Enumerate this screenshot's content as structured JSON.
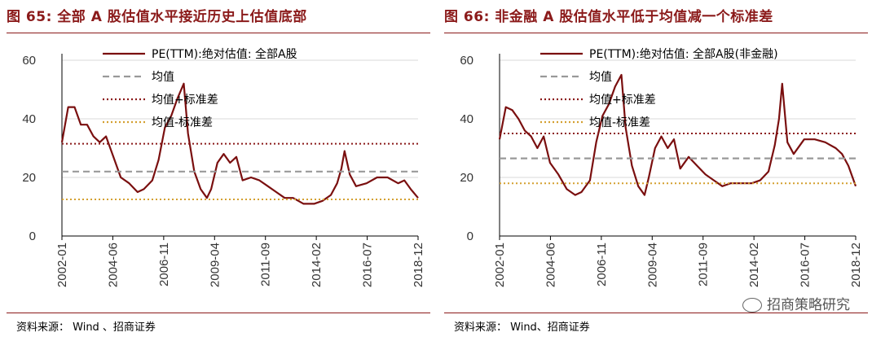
{
  "panels": [
    {
      "title": "图 65:  全部 A 股估值水平接近历史上估值底部",
      "source": "资料来源： Wind 、招商证券",
      "chart_data": {
        "type": "line",
        "ylim": [
          0,
          60
        ],
        "yticks": [
          0,
          20,
          40,
          60
        ],
        "xtick_labels": [
          "2002-01",
          "2004-06",
          "2006-11",
          "2009-04",
          "2011-09",
          "2014-02",
          "2016-07",
          "2018-12"
        ],
        "grid": true,
        "legend_position": "top",
        "series": [
          {
            "name": "PE(TTM):绝对估值: 全部A股",
            "style": "solid",
            "color": "#7a0f0f",
            "x": [
              2002.0,
              2002.3,
              2002.6,
              2002.9,
              2003.2,
              2003.5,
              2003.8,
              2004.1,
              2004.4,
              2004.8,
              2005.2,
              2005.6,
              2005.9,
              2006.3,
              2006.6,
              2006.9,
              2007.2,
              2007.5,
              2007.8,
              2008.0,
              2008.3,
              2008.6,
              2008.9,
              2009.1,
              2009.4,
              2009.7,
              2010.0,
              2010.3,
              2010.6,
              2011.0,
              2011.4,
              2011.8,
              2012.2,
              2012.6,
              2013.0,
              2013.5,
              2014.0,
              2014.4,
              2014.8,
              2015.1,
              2015.3,
              2015.45,
              2015.7,
              2016.0,
              2016.5,
              2017.0,
              2017.5,
              2018.0,
              2018.3,
              2018.6,
              2018.95
            ],
            "y": [
              32,
              44,
              44,
              38,
              38,
              34,
              32,
              34,
              28,
              20,
              18,
              15,
              16,
              19,
              26,
              37,
              41,
              47,
              52,
              35,
              22,
              16,
              13,
              16,
              25,
              28,
              25,
              27,
              19,
              20,
              19,
              17,
              15,
              13,
              13,
              11,
              11,
              12,
              14,
              18,
              23,
              29,
              21,
              17,
              18,
              20,
              20,
              18,
              19,
              16,
              13
            ]
          },
          {
            "name": "均值",
            "style": "dashed",
            "color": "#999999",
            "y_const": 22
          },
          {
            "name": "均值+标准差",
            "style": "dotted",
            "color": "#8b1a1a",
            "y_const": 31.5
          },
          {
            "name": "均值-标准差",
            "style": "dotted",
            "color": "#d4a030",
            "y_const": 12.5
          }
        ]
      }
    },
    {
      "title": "图 66:  非金融 A 股估值水平低于均值减一个标准差",
      "source": "资料来源： Wind、招商证券",
      "watermark": "招商策略研究",
      "chart_data": {
        "type": "line",
        "ylim": [
          0,
          60
        ],
        "yticks": [
          0,
          20,
          40,
          60
        ],
        "xtick_labels": [
          "2002-01",
          "2004-06",
          "2006-11",
          "2009-04",
          "2011-09",
          "2014-02",
          "2016-07",
          "2018-12"
        ],
        "grid": true,
        "legend_position": "top",
        "series": [
          {
            "name": "PE(TTM):绝对估值: 全部A股(非金融)",
            "style": "solid",
            "color": "#7a0f0f",
            "x": [
              2002.0,
              2002.3,
              2002.6,
              2002.9,
              2003.2,
              2003.5,
              2003.8,
              2004.1,
              2004.4,
              2004.8,
              2005.2,
              2005.6,
              2005.9,
              2006.3,
              2006.6,
              2006.9,
              2007.2,
              2007.5,
              2007.8,
              2008.0,
              2008.3,
              2008.6,
              2008.9,
              2009.1,
              2009.4,
              2009.7,
              2010.0,
              2010.3,
              2010.6,
              2011.0,
              2011.4,
              2011.8,
              2012.2,
              2012.6,
              2013.0,
              2013.5,
              2014.0,
              2014.4,
              2014.8,
              2015.1,
              2015.3,
              2015.45,
              2015.7,
              2016.0,
              2016.5,
              2017.0,
              2017.5,
              2018.0,
              2018.3,
              2018.6,
              2018.95
            ],
            "y": [
              33,
              44,
              43,
              40,
              36,
              34,
              30,
              34,
              25,
              21,
              16,
              14,
              15,
              19,
              32,
              41,
              45,
              51,
              55,
              37,
              24,
              17,
              14,
              20,
              30,
              34,
              30,
              33,
              23,
              27,
              24,
              21,
              19,
              17,
              18,
              18,
              18,
              19,
              22,
              31,
              40,
              52,
              32,
              28,
              33,
              33,
              32,
              30,
              28,
              24,
              17
            ]
          },
          {
            "name": "均值",
            "style": "dashed",
            "color": "#999999",
            "y_const": 26.5
          },
          {
            "name": "均值+标准差",
            "style": "dotted",
            "color": "#8b1a1a",
            "y_const": 35
          },
          {
            "name": "均值-标准差",
            "style": "dotted",
            "color": "#d4a030",
            "y_const": 18
          }
        ]
      }
    }
  ]
}
